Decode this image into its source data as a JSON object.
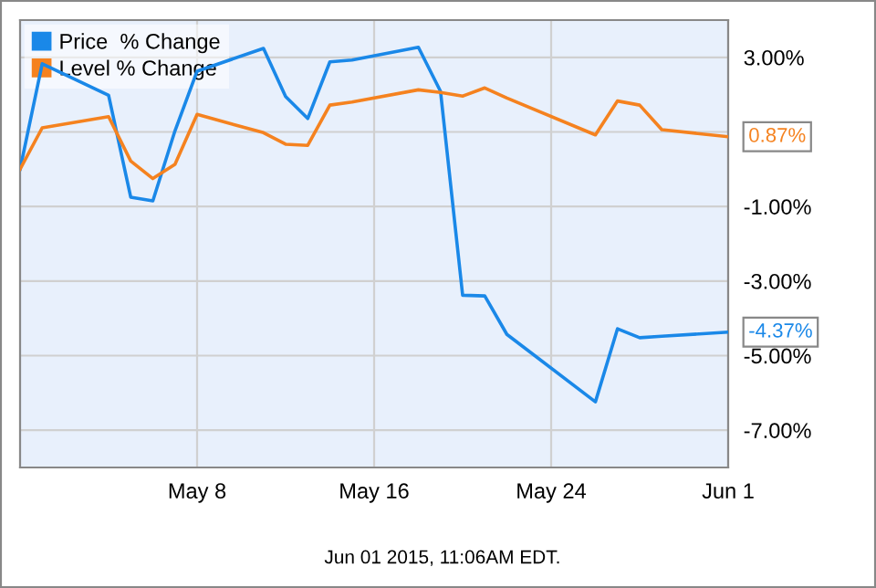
{
  "chart_data": {
    "type": "line",
    "x": [
      "2015-04-30",
      "2015-05-01",
      "2015-05-04",
      "2015-05-05",
      "2015-05-06",
      "2015-05-07",
      "2015-05-08",
      "2015-05-11",
      "2015-05-12",
      "2015-05-13",
      "2015-05-14",
      "2015-05-15",
      "2015-05-18",
      "2015-05-19",
      "2015-05-20",
      "2015-05-21",
      "2015-05-22",
      "2015-05-26",
      "2015-05-27",
      "2015-05-28",
      "2015-05-29",
      "2015-06-01"
    ],
    "series": [
      {
        "name": "Price  % Change",
        "color": "#1a88e8",
        "values": [
          0,
          2.83,
          1.98,
          -0.75,
          -0.85,
          1.03,
          2.63,
          3.24,
          1.95,
          1.36,
          2.88,
          2.93,
          3.27,
          2.09,
          -3.38,
          -3.4,
          -4.43,
          -6.24,
          -4.28,
          -4.52,
          -4.48,
          -4.37
        ],
        "value_labels": [
          null,
          null,
          null,
          null,
          null,
          null,
          null,
          null,
          null,
          null,
          null,
          null,
          null,
          null,
          null,
          null,
          null,
          null,
          null,
          null,
          null,
          "-4.37%"
        ]
      },
      {
        "name": "Level % Change",
        "color": "#f5821f",
        "values": [
          0,
          1.11,
          1.41,
          0.22,
          -0.25,
          0.13,
          1.47,
          0.98,
          0.67,
          0.64,
          1.72,
          1.8,
          2.13,
          2.06,
          1.96,
          2.18,
          1.91,
          0.92,
          1.83,
          1.72,
          1.06,
          0.87
        ],
        "value_labels": [
          null,
          null,
          null,
          null,
          null,
          null,
          null,
          null,
          null,
          null,
          null,
          null,
          null,
          null,
          null,
          null,
          null,
          null,
          null,
          null,
          null,
          "0.87%"
        ]
      }
    ],
    "xlim": [
      "2015-04-30",
      "2015-06-01"
    ],
    "xticks": [
      {
        "value": "2015-05-08",
        "label": "May 8"
      },
      {
        "value": "2015-05-16",
        "label": "May 16"
      },
      {
        "value": "2015-05-24",
        "label": "May 24"
      },
      {
        "value": "2015-06-01",
        "label": "Jun 1"
      }
    ],
    "ylim": [
      -8,
      4
    ],
    "yticks": [
      {
        "value": 3,
        "label": "3.00%"
      },
      {
        "value": 1,
        "label": null
      },
      {
        "value": -1,
        "label": "-1.00%"
      },
      {
        "value": -3,
        "label": "-3.00%"
      },
      {
        "value": -5,
        "label": "-5.00%"
      },
      {
        "value": -7,
        "label": "-7.00%"
      }
    ],
    "grid": true,
    "legend": "top left",
    "annotations": [
      "Jun 01 2015, 11:06AM EDT."
    ]
  }
}
